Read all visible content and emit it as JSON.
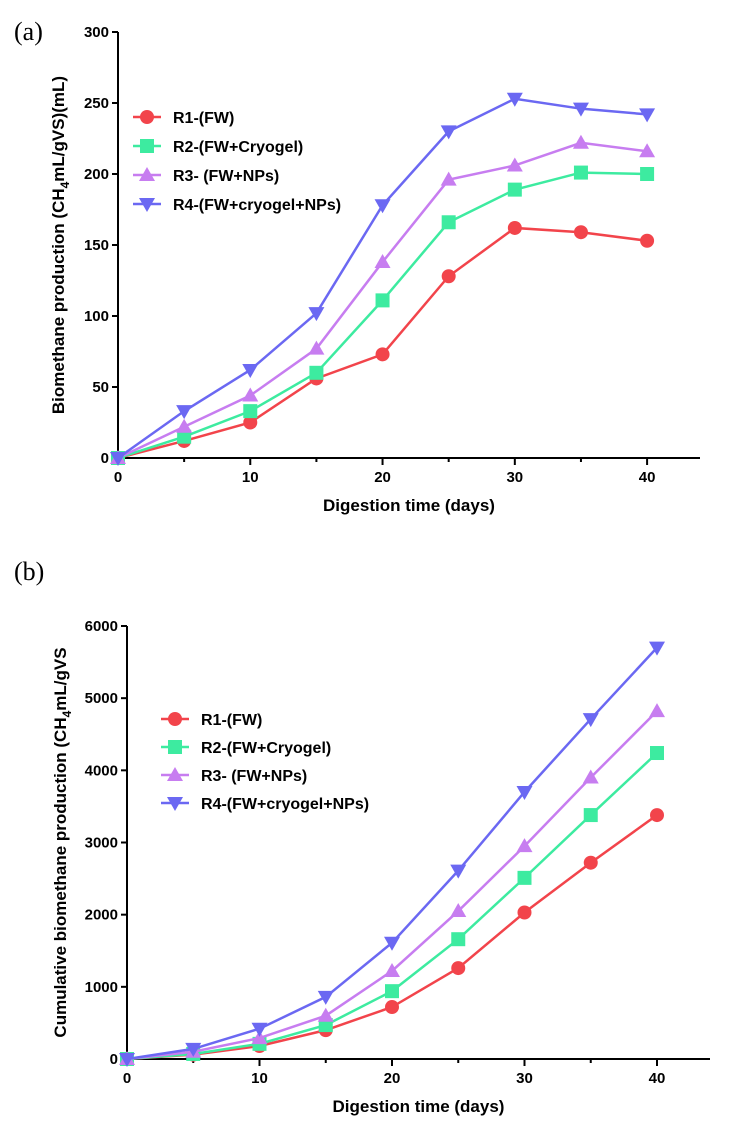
{
  "chart_data": [
    {
      "panel": "(a)",
      "type": "line",
      "xlabel": "Digestion time (days)",
      "ylabel_parts": [
        "Biomethane production (CH",
        "4",
        "mL/gVS)(mL)"
      ],
      "xlim": [
        0,
        44
      ],
      "ylim": [
        0,
        300
      ],
      "xticks": [
        0,
        10,
        20,
        30,
        40
      ],
      "yticks": [
        0,
        50,
        100,
        150,
        200,
        250,
        300
      ],
      "legend_position": "top-left",
      "x": [
        0,
        5,
        10,
        15,
        20,
        25,
        30,
        35,
        40
      ],
      "series": [
        {
          "name": "R1-(FW)",
          "color": "#f2444b",
          "marker": "circle",
          "values": [
            0,
            12,
            25,
            56,
            73,
            128,
            162,
            159,
            153
          ]
        },
        {
          "name": "R2-(FW+Cryogel)",
          "color": "#3deba0",
          "marker": "square",
          "values": [
            0,
            15,
            33,
            60,
            111,
            166,
            189,
            201,
            200
          ]
        },
        {
          "name": "R3- (FW+NPs)",
          "color": "#c77df0",
          "marker": "triangle-up",
          "values": [
            0,
            22,
            44,
            77,
            138,
            196,
            206,
            222,
            216
          ]
        },
        {
          "name": "R4-(FW+cryogel+NPs)",
          "color": "#6b68f2",
          "marker": "triangle-down",
          "values": [
            0,
            33,
            62,
            102,
            178,
            230,
            253,
            246,
            242
          ]
        }
      ]
    },
    {
      "panel": "(b)",
      "type": "line",
      "xlabel": "Digestion time (days)",
      "ylabel_parts": [
        "Cumulative biomethane production (CH",
        "4",
        "mL/gVS"
      ],
      "xlim": [
        0,
        44
      ],
      "ylim": [
        0,
        6000
      ],
      "xticks": [
        0,
        10,
        20,
        30,
        40
      ],
      "yticks": [
        0,
        1000,
        2000,
        3000,
        4000,
        5000,
        6000
      ],
      "legend_position": "top-left",
      "x": [
        0,
        5,
        10,
        15,
        20,
        25,
        30,
        35,
        40
      ],
      "series": [
        {
          "name": "R1-(FW)",
          "color": "#f2444b",
          "marker": "circle",
          "values": [
            0,
            60,
            180,
            400,
            720,
            1260,
            2030,
            2720,
            3380
          ]
        },
        {
          "name": "R2-(FW+Cryogel)",
          "color": "#3deba0",
          "marker": "square",
          "values": [
            0,
            70,
            210,
            470,
            940,
            1660,
            2510,
            3380,
            4240
          ]
        },
        {
          "name": "R3- (FW+NPs)",
          "color": "#c77df0",
          "marker": "triangle-up",
          "values": [
            0,
            100,
            290,
            600,
            1220,
            2050,
            2950,
            3900,
            4820
          ]
        },
        {
          "name": "R4-(FW+cryogel+NPs)",
          "color": "#6b68f2",
          "marker": "triangle-down",
          "values": [
            0,
            140,
            420,
            860,
            1610,
            2610,
            3700,
            4710,
            5700
          ]
        }
      ]
    }
  ]
}
